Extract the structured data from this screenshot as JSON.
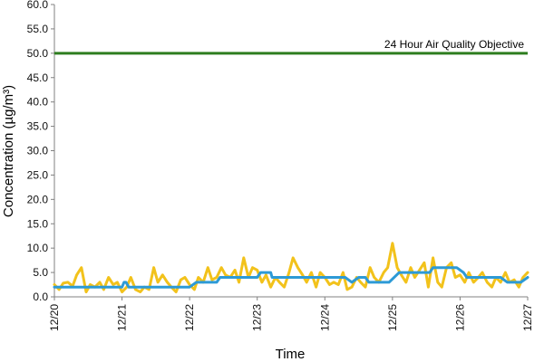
{
  "chart_data": {
    "type": "line",
    "title": "",
    "xlabel": "Time",
    "ylabel": "Concentration (µg/m³)",
    "ylim": [
      0,
      60
    ],
    "y_ticks": [
      "0.0",
      "5.0",
      "10.0",
      "15.0",
      "20.0",
      "25.0",
      "30.0",
      "35.0",
      "40.0",
      "45.0",
      "50.0",
      "55.0",
      "60.0"
    ],
    "x_ticks": [
      "12/20",
      "12/21",
      "12/22",
      "12/23",
      "12/24",
      "12/25",
      "12/26",
      "12/27"
    ],
    "grid": false,
    "reference_line": {
      "label": "24 Hour Air Quality Objective",
      "value": 50,
      "color": "#2e7d1f"
    },
    "series": [
      {
        "color": "#f2c21b",
        "x": [
          0,
          0.07,
          0.13,
          0.2,
          0.27,
          0.33,
          0.4,
          0.47,
          0.53,
          0.6,
          0.67,
          0.73,
          0.8,
          0.87,
          0.93,
          1.0,
          1.07,
          1.13,
          1.2,
          1.27,
          1.33,
          1.4,
          1.47,
          1.53,
          1.6,
          1.67,
          1.73,
          1.8,
          1.87,
          1.93,
          2.0,
          2.07,
          2.13,
          2.2,
          2.27,
          2.33,
          2.4,
          2.47,
          2.53,
          2.6,
          2.67,
          2.73,
          2.8,
          2.87,
          2.93,
          3.0,
          3.07,
          3.13,
          3.2,
          3.27,
          3.33,
          3.4,
          3.47,
          3.53,
          3.6,
          3.67,
          3.73,
          3.8,
          3.87,
          3.93,
          4.0,
          4.07,
          4.13,
          4.2,
          4.27,
          4.33,
          4.4,
          4.47,
          4.53,
          4.6,
          4.67,
          4.73,
          4.8,
          4.87,
          4.93,
          5.0,
          5.07,
          5.13,
          5.2,
          5.27,
          5.33,
          5.4,
          5.47,
          5.53,
          5.6,
          5.67,
          5.73,
          5.8,
          5.87,
          5.93,
          6.0,
          6.07,
          6.13,
          6.2,
          6.27,
          6.33,
          6.4,
          6.47,
          6.53,
          6.6,
          6.67,
          6.73,
          6.8,
          6.87,
          6.93,
          7.0
        ],
        "y": [
          2.5,
          1.5,
          2.8,
          3,
          2.2,
          4.5,
          6,
          1,
          2.5,
          2,
          3,
          1.5,
          4,
          2.5,
          3,
          1,
          2,
          4,
          1.5,
          1,
          2,
          1.5,
          6,
          3,
          4.5,
          3,
          2,
          1,
          3.5,
          4,
          2.5,
          1.5,
          4,
          3,
          6,
          3.5,
          4,
          6,
          4.5,
          4,
          5.5,
          3,
          8,
          4,
          6,
          5.5,
          3,
          4.5,
          2,
          4,
          3,
          2,
          5,
          8,
          6,
          4.5,
          3,
          5,
          2,
          5,
          4,
          2.5,
          3,
          2.5,
          5,
          1.5,
          2,
          4,
          3,
          2,
          6,
          4,
          3,
          5,
          6,
          11,
          6,
          4.5,
          3,
          6,
          4,
          5.5,
          7,
          2,
          8,
          3,
          2,
          6,
          7,
          4,
          4.5,
          3,
          5,
          3,
          4,
          5,
          3,
          2,
          4,
          3,
          5,
          3,
          3.5,
          2,
          4,
          5
        ]
      },
      {
        "color": "#2d9ad6",
        "x": [
          0,
          0.5,
          1.0,
          1.03,
          1.06,
          1.1,
          1.5,
          2.0,
          2.1,
          2.12,
          2.4,
          2.45,
          2.75,
          3.0,
          3.05,
          3.2,
          3.22,
          3.5,
          3.8,
          4.0,
          4.2,
          4.3,
          4.4,
          4.5,
          4.6,
          4.65,
          4.95,
          5.1,
          5.4,
          5.55,
          5.6,
          5.85,
          5.95,
          6.05,
          6.1,
          6.3,
          6.4,
          6.6,
          6.7,
          6.9,
          7.0
        ],
        "y": [
          2,
          2,
          2,
          3,
          3,
          2,
          2,
          2,
          3,
          3,
          3,
          4,
          4,
          4,
          5,
          5,
          4,
          4,
          4,
          4,
          4,
          4,
          3,
          4,
          4,
          3,
          3,
          5,
          5,
          5,
          6,
          6,
          6,
          5,
          4,
          4,
          4,
          4,
          3,
          3,
          4
        ]
      }
    ]
  }
}
